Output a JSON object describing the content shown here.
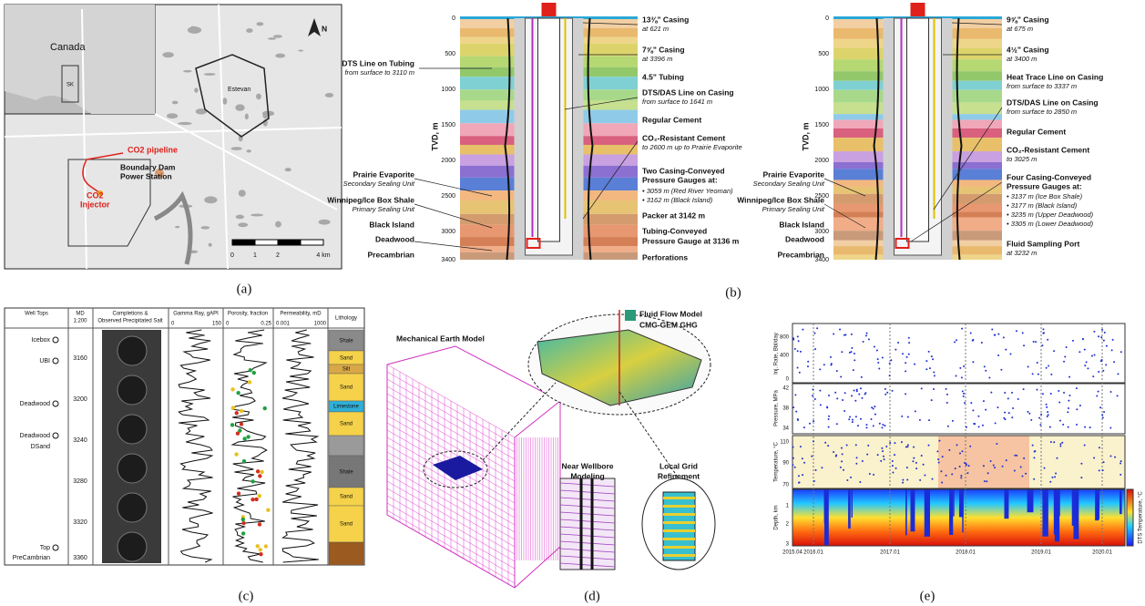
{
  "panel_a": {
    "labels": [
      "Canada",
      "SK",
      "Estevan",
      "CO2 pipeline",
      "Boundary Dam",
      "Power Station",
      "CO2",
      "Injector",
      "N"
    ],
    "scale": [
      "0",
      "1",
      "2",
      "4 km"
    ]
  },
  "panel_b": {
    "left_well": {
      "axis_label": "TVD, m",
      "depths": [
        "0",
        "500",
        "1000",
        "1500",
        "2000",
        "2500",
        "3000",
        "3400"
      ],
      "left_labels": [
        "DTS Line on Tubing",
        "from surface to 3110 m",
        "Prairie Evaporite",
        "Secondary Sealing Unit",
        "Winnipeg/Ice Box Shale",
        "Primary Sealing Unit",
        "Black Island",
        "Deadwood",
        "Precambrian"
      ],
      "right_labels": [
        "13⅜\" Casing",
        "at 621 m",
        "7⅝\" Casing",
        "at 3396 m",
        "4.5\" Tubing",
        "DTS/DAS Line on Casing",
        "from surface to 1641 m",
        "Regular Cement",
        "CO₂-Resistant Cement",
        "to 2600 m up to Prairie Evaporite",
        "Two Casing-Conveyed",
        "Pressure Gauges at:",
        "•  3059 m (Red River Yeoman)",
        "•  3162 m (Black Island)",
        "Packer at 3142 m",
        "Tubing-Conveyed",
        "Pressure Gauge at 3136 m",
        "Perforations"
      ]
    },
    "right_well": {
      "axis_label": "TVD, m",
      "depths": [
        "0",
        "500",
        "1000",
        "1500",
        "2000",
        "2500",
        "3000",
        "3400"
      ],
      "left_labels": [
        "Prairie Evaporite",
        "Secondary Sealing Unit",
        "Winnipeg/Ice Box Shale",
        "Primary Sealing Unit",
        "Black Island",
        "Deadwood",
        "Precambrian"
      ],
      "right_labels": [
        "9⅝\" Casing",
        "at 675 m",
        "4½\" Casing",
        "at 3400 m",
        "Heat Trace Line on Casing",
        "from surface to 3337 m",
        "DTS/DAS Line on Casing",
        "from surface to 2850 m",
        "Regular Cement",
        "CO₂-Resistant Cement",
        "to 3025 m",
        "Four Casing-Conveyed",
        "Pressure Gauges at:",
        "•  3137 m (Ice Box Shale)",
        "•  3177 m (Black Island)",
        "•  3235 m (Upper Deadwood)",
        "•  3305 m (Lower Deadwood)",
        "Fluid Sampling Port",
        "at 3232 m"
      ]
    }
  },
  "panel_c": {
    "headers": [
      "Well Tops",
      "MD",
      "1:200",
      "Completions &",
      "Observed Precipitated Salt",
      "Gamma Ray, gAPI",
      "Porosity, fraction",
      "Permeability, mD",
      "Lithology"
    ],
    "scales": [
      "0",
      "150",
      "0",
      "0.25",
      "0.001",
      "1000"
    ],
    "tops": [
      "Icebox",
      "UBI",
      "Deadwood",
      "Deadwood",
      "DSand",
      "Top",
      "PreCambrian"
    ],
    "depths": [
      "3160",
      "3200",
      "3240",
      "3280",
      "3320",
      "3360"
    ],
    "lithology": [
      "Shale",
      "Sand",
      "Silt",
      "Sand",
      "Limestone",
      "Sand",
      "Shale",
      "Sand",
      "Sand"
    ]
  },
  "panel_d": {
    "labels": [
      "Mechanical Earth Model",
      "Fluid Flow Model",
      "CMG-GEM GHG",
      "Near Wellbore",
      "Modeling",
      "Local Grid",
      "Refinement"
    ]
  },
  "panel_e": {
    "axis_labels": [
      "Inj. Rate, Bbl/day",
      "Pressure, MPa",
      "Temperature, °C",
      "Depth, km",
      "DTS Temperature, °C"
    ],
    "rate_ticks": [
      "800",
      "400",
      "0"
    ],
    "pressure_ticks": [
      "42",
      "38",
      "34"
    ],
    "temperature_ticks": [
      "110",
      "90",
      "70"
    ],
    "depth_ticks": [
      "1",
      "2",
      "3"
    ],
    "dates": [
      "2015.04",
      "2016.01",
      "2017.01",
      "2018.01",
      "2019.01",
      "2020.01"
    ]
  },
  "captions": [
    "(a)",
    "(b)",
    "(c)",
    "(d)",
    "(e)"
  ]
}
